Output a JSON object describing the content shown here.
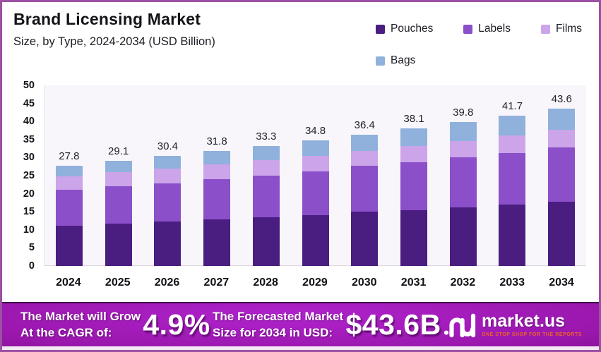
{
  "header": {
    "title": "Brand Licensing Market",
    "subtitle": "Size, by Type, 2024-2034 (USD Billion)"
  },
  "chart_data": {
    "type": "bar",
    "stacked": true,
    "title": "Brand Licensing Market",
    "subtitle": "Size, by Type, 2024-2034 (USD Billion)",
    "unit": "USD Billion",
    "categories": [
      "2024",
      "2025",
      "2026",
      "2027",
      "2028",
      "2029",
      "2030",
      "2031",
      "2032",
      "2033",
      "2034"
    ],
    "totals": [
      "27.8",
      "29.1",
      "30.4",
      "31.8",
      "33.3",
      "34.8",
      "36.4",
      "38.1",
      "39.8",
      "41.7",
      "43.6"
    ],
    "series": [
      {
        "name": "Pouches",
        "color": "#4a1d80",
        "values": [
          11.2,
          11.8,
          12.3,
          12.9,
          13.5,
          14.1,
          15.0,
          15.5,
          16.2,
          16.9,
          17.7
        ]
      },
      {
        "name": "Labels",
        "color": "#8a4fc9",
        "values": [
          9.8,
          10.2,
          10.6,
          11.1,
          11.6,
          12.1,
          12.7,
          13.2,
          13.8,
          14.4,
          15.1
        ]
      },
      {
        "name": "Films",
        "color": "#cba4ea",
        "values": [
          3.8,
          3.9,
          4.0,
          4.1,
          4.2,
          4.3,
          4.1,
          4.5,
          4.6,
          4.8,
          4.9
        ]
      },
      {
        "name": "Bags",
        "color": "#8fb1dc",
        "values": [
          3.0,
          3.2,
          3.5,
          3.7,
          4.0,
          4.3,
          4.6,
          4.9,
          5.2,
          5.6,
          5.9
        ]
      }
    ],
    "ylim": [
      0,
      50
    ],
    "yticks": [
      0,
      5,
      10,
      15,
      20,
      25,
      30,
      35,
      40,
      45,
      50
    ],
    "grid": false,
    "legend_position": "top-right"
  },
  "footer": {
    "cagr_text": [
      "The Market will Grow",
      "At the CAGR of:"
    ],
    "cagr_value": "4.9%",
    "forecast_text": [
      "The Forecasted Market",
      "Size for 2034 in USD:"
    ],
    "forecast_value": "$43.6B",
    "brand": "market.us",
    "tagline": "ONE STOP SHOP FOR THE REPORTS"
  }
}
